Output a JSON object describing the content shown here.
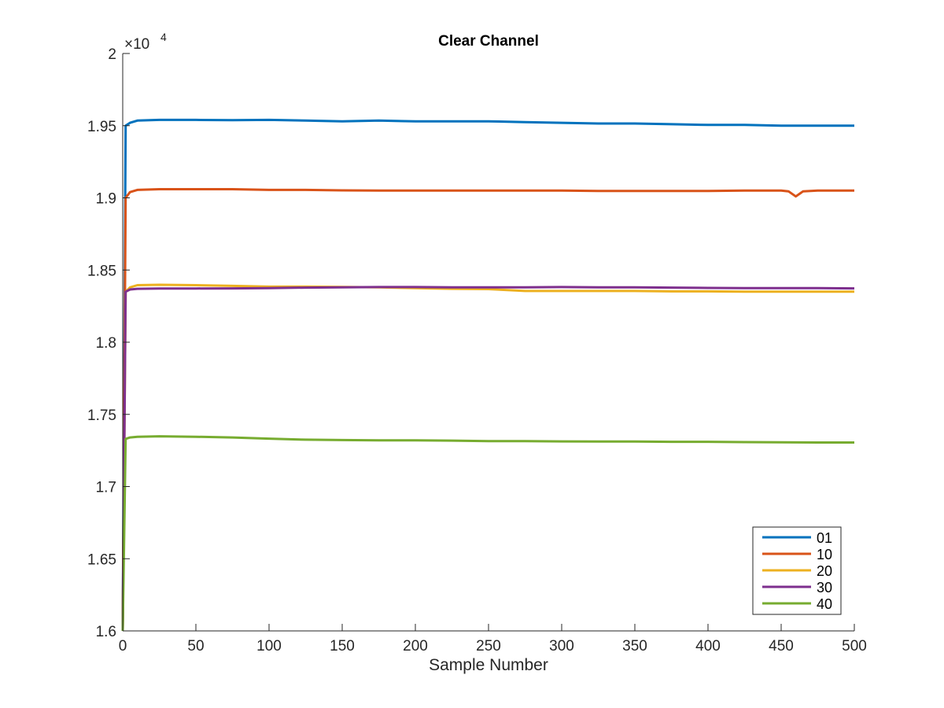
{
  "chart_data": {
    "type": "line",
    "title": "Clear Channel",
    "xlabel": "Sample Number",
    "ylabel": "",
    "xlim": [
      0,
      500
    ],
    "ylim": [
      16000,
      20000
    ],
    "x_ticks": [
      0,
      50,
      100,
      150,
      200,
      250,
      300,
      350,
      400,
      450,
      500
    ],
    "x_tick_labels": [
      "0",
      "50",
      "100",
      "150",
      "200",
      "250",
      "300",
      "350",
      "400",
      "450",
      "500"
    ],
    "y_ticks": [
      16000,
      16500,
      17000,
      17500,
      18000,
      18500,
      19000,
      19500,
      20000
    ],
    "y_tick_labels": [
      "1.6",
      "1.65",
      "1.7",
      "1.75",
      "1.8",
      "1.85",
      "1.9",
      "1.95",
      "2"
    ],
    "y_exponent_label": {
      "base": "×10",
      "exponent": "4"
    },
    "grid": false,
    "legend_position": "bottom-right",
    "series": [
      {
        "name": "01",
        "color": "#0072BD",
        "x": [
          0,
          2,
          5,
          10,
          25,
          50,
          75,
          100,
          125,
          150,
          175,
          200,
          225,
          250,
          275,
          300,
          325,
          350,
          375,
          400,
          425,
          450,
          475,
          500
        ],
        "y": [
          16000,
          19500,
          19520,
          19535,
          19540,
          19540,
          19538,
          19540,
          19535,
          19530,
          19535,
          19530,
          19530,
          19530,
          19525,
          19520,
          19515,
          19515,
          19510,
          19505,
          19505,
          19500,
          19500,
          19500
        ]
      },
      {
        "name": "10",
        "color": "#D95319",
        "x": [
          0,
          2,
          5,
          10,
          25,
          50,
          75,
          100,
          125,
          150,
          175,
          200,
          225,
          250,
          275,
          300,
          325,
          350,
          375,
          400,
          425,
          450,
          455,
          460,
          465,
          475,
          500
        ],
        "y": [
          16000,
          19000,
          19040,
          19055,
          19060,
          19060,
          19060,
          19055,
          19055,
          19052,
          19050,
          19050,
          19050,
          19050,
          19050,
          19050,
          19048,
          19048,
          19048,
          19048,
          19050,
          19050,
          19045,
          19010,
          19045,
          19050,
          19050
        ]
      },
      {
        "name": "20",
        "color": "#EDB120",
        "x": [
          0,
          2,
          5,
          10,
          25,
          50,
          75,
          100,
          125,
          150,
          175,
          200,
          225,
          250,
          275,
          300,
          325,
          350,
          375,
          400,
          425,
          450,
          475,
          500
        ],
        "y": [
          16000,
          18350,
          18380,
          18395,
          18398,
          18395,
          18390,
          18385,
          18385,
          18383,
          18380,
          18375,
          18370,
          18368,
          18355,
          18355,
          18355,
          18355,
          18352,
          18352,
          18350,
          18350,
          18350,
          18350
        ]
      },
      {
        "name": "30",
        "color": "#7E2F8E",
        "x": [
          0,
          2,
          5,
          10,
          25,
          50,
          75,
          100,
          125,
          150,
          175,
          200,
          225,
          250,
          275,
          300,
          325,
          350,
          375,
          400,
          425,
          450,
          475,
          500
        ],
        "y": [
          16000,
          18350,
          18365,
          18370,
          18372,
          18372,
          18373,
          18375,
          18378,
          18380,
          18382,
          18382,
          18380,
          18380,
          18380,
          18382,
          18380,
          18380,
          18378,
          18376,
          18375,
          18375,
          18375,
          18373
        ]
      },
      {
        "name": "40",
        "color": "#77AC30",
        "x": [
          0,
          2,
          5,
          10,
          25,
          50,
          75,
          100,
          125,
          150,
          175,
          200,
          225,
          250,
          275,
          300,
          325,
          350,
          375,
          400,
          425,
          450,
          475,
          500
        ],
        "y": [
          16000,
          17330,
          17340,
          17345,
          17348,
          17345,
          17340,
          17332,
          17325,
          17322,
          17320,
          17320,
          17318,
          17315,
          17315,
          17313,
          17312,
          17312,
          17310,
          17310,
          17308,
          17306,
          17305,
          17305
        ]
      }
    ]
  }
}
